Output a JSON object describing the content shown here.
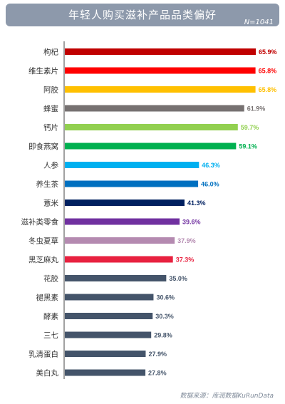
{
  "title": "年轻人购买滋补产品品类偏好",
  "sample_label": "N=1041",
  "source": "数据来源：库润数据KuRunData",
  "chart_data": {
    "type": "bar",
    "orientation": "horizontal",
    "title": "年轻人购买滋补产品品类偏好",
    "xlim": [
      0,
      70
    ],
    "value_format": "percent",
    "categories": [
      "枸杞",
      "维生素片",
      "阿胶",
      "蜂蜜",
      "钙片",
      "即食燕窝",
      "人参",
      "养生茶",
      "薏米",
      "滋补类零食",
      "冬虫夏草",
      "黑芝麻丸",
      "花胶",
      "褪黑素",
      "酵素",
      "三七",
      "乳清蛋白",
      "美白丸"
    ],
    "values": [
      65.9,
      65.8,
      65.8,
      61.9,
      59.7,
      59.1,
      46.3,
      46.0,
      41.3,
      39.6,
      37.9,
      37.3,
      35.0,
      30.6,
      30.3,
      29.8,
      27.9,
      27.8
    ],
    "value_labels": [
      "65.9%",
      "65.8%",
      "65.8%",
      "61.9%",
      "59.7%",
      "59.1%",
      "46.3%",
      "46.0%",
      "41.3%",
      "39.6%",
      "37.9%",
      "37.3%",
      "35.0%",
      "30.6%",
      "30.3%",
      "29.8%",
      "27.9%",
      "27.8%"
    ],
    "colors": [
      "#c00000",
      "#ff0000",
      "#ffc000",
      "#767171",
      "#92d050",
      "#00b050",
      "#00b0f0",
      "#0070c0",
      "#002060",
      "#7030a0",
      "#b48ab0",
      "#e8213f",
      "#44546a",
      "#44546a",
      "#44546a",
      "#44546a",
      "#44546a",
      "#44546a"
    ]
  }
}
